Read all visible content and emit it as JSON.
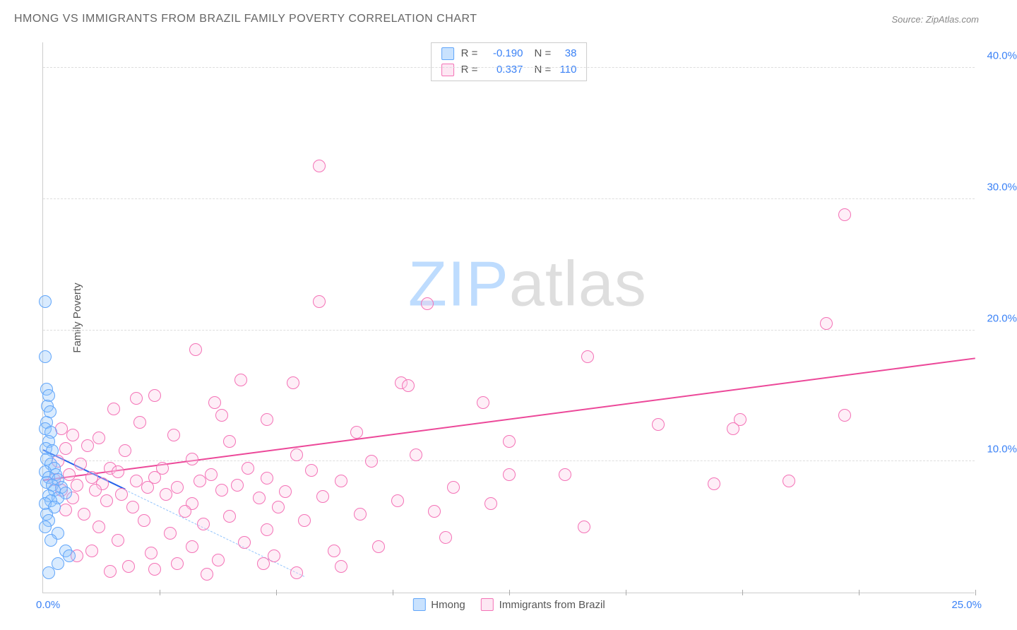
{
  "header": {
    "title": "HMONG VS IMMIGRANTS FROM BRAZIL FAMILY POVERTY CORRELATION CHART",
    "source": "Source: ZipAtlas.com"
  },
  "chart": {
    "type": "scatter",
    "y_axis_label": "Family Poverty",
    "xlim": [
      0,
      25
    ],
    "ylim": [
      0,
      42
    ],
    "y_ticks": [
      10,
      20,
      30,
      40
    ],
    "y_tick_labels": [
      "10.0%",
      "20.0%",
      "30.0%",
      "40.0%"
    ],
    "x_ticks": [
      3.125,
      6.25,
      9.375,
      12.5,
      15.625,
      18.75,
      21.875,
      25
    ],
    "x_zero_label": "0.0%",
    "x_max_label": "25.0%",
    "grid_color": "#dddddd",
    "background_color": "#ffffff",
    "watermark": {
      "zip": "ZIP",
      "atlas": "atlas"
    },
    "legend_top": {
      "rows": [
        {
          "swatch": "blue",
          "r_label": "R = ",
          "r_value": "-0.190",
          "n_label": "N = ",
          "n_value": "38"
        },
        {
          "swatch": "pink",
          "r_label": "R = ",
          "r_value": "0.337",
          "n_label": "N = ",
          "n_value": "110"
        }
      ]
    },
    "legend_bottom": {
      "items": [
        {
          "swatch": "blue",
          "label": "Hmong"
        },
        {
          "swatch": "pink",
          "label": "Immigrants from Brazil"
        }
      ]
    },
    "series": {
      "hmong": {
        "color_fill": "rgba(147,197,253,0.35)",
        "color_stroke": "#60a5fa",
        "trend_line": {
          "x1": 0,
          "y1": 10.8,
          "x2": 2.2,
          "y2": 7.8,
          "color": "#2563eb",
          "solid": true
        },
        "trend_extension": {
          "x1": 2.2,
          "y1": 7.8,
          "x2": 7.0,
          "y2": 1.2,
          "color": "#93c5fd",
          "solid": false
        },
        "points": [
          [
            0.05,
            22.2
          ],
          [
            0.05,
            18.0
          ],
          [
            0.1,
            15.5
          ],
          [
            0.15,
            15.0
          ],
          [
            0.12,
            14.2
          ],
          [
            0.18,
            13.8
          ],
          [
            0.1,
            13.0
          ],
          [
            0.05,
            12.5
          ],
          [
            0.2,
            12.2
          ],
          [
            0.15,
            11.5
          ],
          [
            0.08,
            11.0
          ],
          [
            0.25,
            10.8
          ],
          [
            0.1,
            10.2
          ],
          [
            0.2,
            9.8
          ],
          [
            0.3,
            9.5
          ],
          [
            0.05,
            9.2
          ],
          [
            0.35,
            9.0
          ],
          [
            0.15,
            8.8
          ],
          [
            0.4,
            8.6
          ],
          [
            0.1,
            8.4
          ],
          [
            0.25,
            8.2
          ],
          [
            0.5,
            8.0
          ],
          [
            0.3,
            7.8
          ],
          [
            0.6,
            7.6
          ],
          [
            0.15,
            7.4
          ],
          [
            0.4,
            7.2
          ],
          [
            0.2,
            7.0
          ],
          [
            0.05,
            6.8
          ],
          [
            0.3,
            6.5
          ],
          [
            0.1,
            6.0
          ],
          [
            0.15,
            5.5
          ],
          [
            0.05,
            5.0
          ],
          [
            0.4,
            4.5
          ],
          [
            0.2,
            4.0
          ],
          [
            0.6,
            3.2
          ],
          [
            0.7,
            2.8
          ],
          [
            0.4,
            2.2
          ],
          [
            0.15,
            1.5
          ]
        ]
      },
      "brazil": {
        "color_fill": "rgba(251,207,232,0.35)",
        "color_stroke": "#f472b6",
        "trend_line": {
          "x1": 0,
          "y1": 8.5,
          "x2": 25,
          "y2": 17.8,
          "color": "#ec4899",
          "solid": true
        },
        "points": [
          [
            7.4,
            32.5
          ],
          [
            21.5,
            28.8
          ],
          [
            7.4,
            22.2
          ],
          [
            10.3,
            22.0
          ],
          [
            21.0,
            20.5
          ],
          [
            14.6,
            18.0
          ],
          [
            4.1,
            18.5
          ],
          [
            9.6,
            16.0
          ],
          [
            9.8,
            15.8
          ],
          [
            5.3,
            16.2
          ],
          [
            3.0,
            15.0
          ],
          [
            6.7,
            16.0
          ],
          [
            11.8,
            14.5
          ],
          [
            2.5,
            14.8
          ],
          [
            4.6,
            14.5
          ],
          [
            1.9,
            14.0
          ],
          [
            18.7,
            13.2
          ],
          [
            21.5,
            13.5
          ],
          [
            6.0,
            13.2
          ],
          [
            2.6,
            13.0
          ],
          [
            4.8,
            13.5
          ],
          [
            0.5,
            12.5
          ],
          [
            0.8,
            12.0
          ],
          [
            8.4,
            12.2
          ],
          [
            1.5,
            11.8
          ],
          [
            3.5,
            12.0
          ],
          [
            16.5,
            12.8
          ],
          [
            18.5,
            12.5
          ],
          [
            5.0,
            11.5
          ],
          [
            12.5,
            11.5
          ],
          [
            0.6,
            11.0
          ],
          [
            1.2,
            11.2
          ],
          [
            2.2,
            10.8
          ],
          [
            6.8,
            10.5
          ],
          [
            10.0,
            10.5
          ],
          [
            4.0,
            10.2
          ],
          [
            0.4,
            10.0
          ],
          [
            8.8,
            10.0
          ],
          [
            1.0,
            9.8
          ],
          [
            1.8,
            9.5
          ],
          [
            3.2,
            9.5
          ],
          [
            5.5,
            9.5
          ],
          [
            7.2,
            9.3
          ],
          [
            2.0,
            9.2
          ],
          [
            4.5,
            9.0
          ],
          [
            0.7,
            9.0
          ],
          [
            12.5,
            9.0
          ],
          [
            14.0,
            9.0
          ],
          [
            1.3,
            8.8
          ],
          [
            3.0,
            8.8
          ],
          [
            6.0,
            8.7
          ],
          [
            0.3,
            8.6
          ],
          [
            2.5,
            8.5
          ],
          [
            4.2,
            8.5
          ],
          [
            8.0,
            8.5
          ],
          [
            20.0,
            8.5
          ],
          [
            18.0,
            8.3
          ],
          [
            1.6,
            8.3
          ],
          [
            0.9,
            8.2
          ],
          [
            5.2,
            8.2
          ],
          [
            3.6,
            8.0
          ],
          [
            11.0,
            8.0
          ],
          [
            2.8,
            8.0
          ],
          [
            0.5,
            7.8
          ],
          [
            1.4,
            7.8
          ],
          [
            4.8,
            7.8
          ],
          [
            6.5,
            7.7
          ],
          [
            2.1,
            7.5
          ],
          [
            3.3,
            7.5
          ],
          [
            7.5,
            7.3
          ],
          [
            0.8,
            7.2
          ],
          [
            5.8,
            7.2
          ],
          [
            9.5,
            7.0
          ],
          [
            1.7,
            7.0
          ],
          [
            4.0,
            6.8
          ],
          [
            12.0,
            6.8
          ],
          [
            2.4,
            6.5
          ],
          [
            6.3,
            6.5
          ],
          [
            0.6,
            6.3
          ],
          [
            3.8,
            6.2
          ],
          [
            10.5,
            6.2
          ],
          [
            8.5,
            6.0
          ],
          [
            1.1,
            6.0
          ],
          [
            5.0,
            5.8
          ],
          [
            2.7,
            5.5
          ],
          [
            7.0,
            5.5
          ],
          [
            4.3,
            5.2
          ],
          [
            14.5,
            5.0
          ],
          [
            1.5,
            5.0
          ],
          [
            6.0,
            4.8
          ],
          [
            9.0,
            3.5
          ],
          [
            3.4,
            4.5
          ],
          [
            10.8,
            4.2
          ],
          [
            2.0,
            4.0
          ],
          [
            5.4,
            3.8
          ],
          [
            4.0,
            3.5
          ],
          [
            7.8,
            3.2
          ],
          [
            1.3,
            3.2
          ],
          [
            2.9,
            3.0
          ],
          [
            6.2,
            2.8
          ],
          [
            0.9,
            2.8
          ],
          [
            4.7,
            2.5
          ],
          [
            3.6,
            2.2
          ],
          [
            5.9,
            2.2
          ],
          [
            2.3,
            2.0
          ],
          [
            8.0,
            2.0
          ],
          [
            3.0,
            1.8
          ],
          [
            1.8,
            1.6
          ],
          [
            6.8,
            1.5
          ],
          [
            4.4,
            1.4
          ]
        ]
      }
    }
  }
}
